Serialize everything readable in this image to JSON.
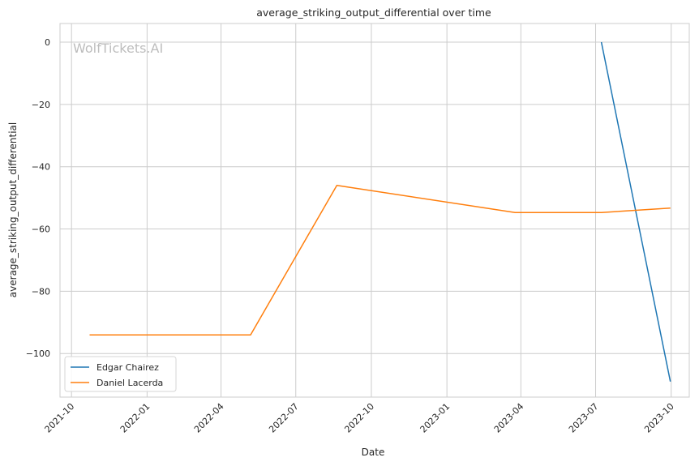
{
  "chart_data": {
    "type": "line",
    "title": "average_striking_output_differential over time",
    "xlabel": "Date",
    "ylabel": "average_striking_output_differential",
    "watermark": "WolfTickets.AI",
    "xlim": [
      "2021-09-17",
      "2023-10-23"
    ],
    "ylim": [
      -114,
      6
    ],
    "x_ticks": [
      "2021-10",
      "2022-01",
      "2022-04",
      "2022-07",
      "2022-10",
      "2023-01",
      "2023-04",
      "2023-07",
      "2023-10"
    ],
    "y_ticks": [
      0,
      -20,
      -40,
      -60,
      -80,
      -100
    ],
    "y_tick_labels": [
      "0",
      "−20",
      "−40",
      "−60",
      "−80",
      "−100"
    ],
    "grid": true,
    "legend_position": "lower-left",
    "series": [
      {
        "name": "Edgar Chairez",
        "color": "#1f77b4",
        "points": [
          {
            "x": "2023-07-08",
            "y": 0
          },
          {
            "x": "2023-09-30",
            "y": -109
          }
        ]
      },
      {
        "name": "Daniel Lacerda",
        "color": "#ff7f0e",
        "points": [
          {
            "x": "2021-10-23",
            "y": -94
          },
          {
            "x": "2022-05-07",
            "y": -94
          },
          {
            "x": "2022-08-20",
            "y": -46
          },
          {
            "x": "2023-03-25",
            "y": -54.7
          },
          {
            "x": "2023-07-08",
            "y": -54.7
          },
          {
            "x": "2023-09-30",
            "y": -53.3
          }
        ]
      }
    ]
  }
}
